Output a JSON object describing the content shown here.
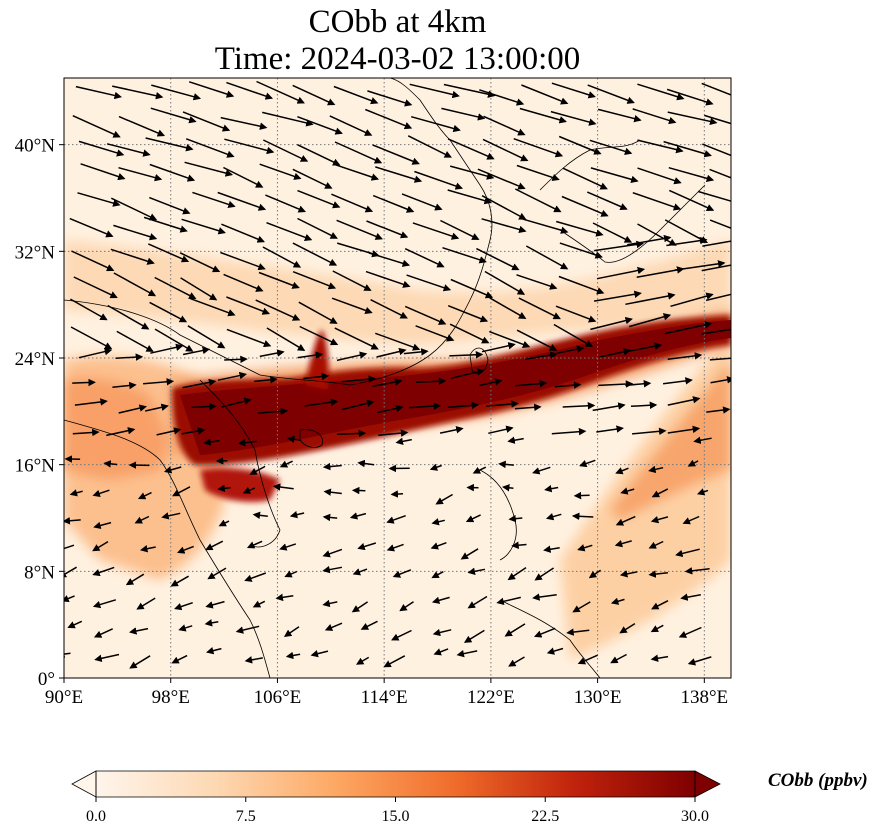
{
  "title": "CObb at 4km",
  "subtitle": "Time: 2024-03-02 13:00:00",
  "map": {
    "lon_range": [
      90,
      140
    ],
    "lat_range": [
      0,
      45
    ],
    "lon_ticks": [
      "90°E",
      "98°E",
      "106°E",
      "114°E",
      "122°E",
      "130°E",
      "138°E"
    ],
    "lon_tick_values": [
      90,
      98,
      106,
      114,
      122,
      130,
      138
    ],
    "lat_ticks": [
      "0°",
      "8°N",
      "16°N",
      "24°N",
      "32°N",
      "40°N"
    ],
    "lat_tick_values": [
      0,
      8,
      16,
      24,
      32,
      40
    ],
    "gridlines": true,
    "layers": [
      "CObb concentration field",
      "wind vectors",
      "coastlines"
    ]
  },
  "colorbar": {
    "label": "CObb (ppbv)",
    "min": 0.0,
    "max": 30.0,
    "ticks": [
      "0.0",
      "7.5",
      "15.0",
      "22.5",
      "30.0"
    ],
    "tick_values": [
      0,
      7.5,
      15,
      22.5,
      30
    ],
    "colors": [
      "#fff5eb",
      "#fdd8b3",
      "#fda863",
      "#f06c2a",
      "#c0220c",
      "#7f0000"
    ],
    "extend": "both"
  }
}
